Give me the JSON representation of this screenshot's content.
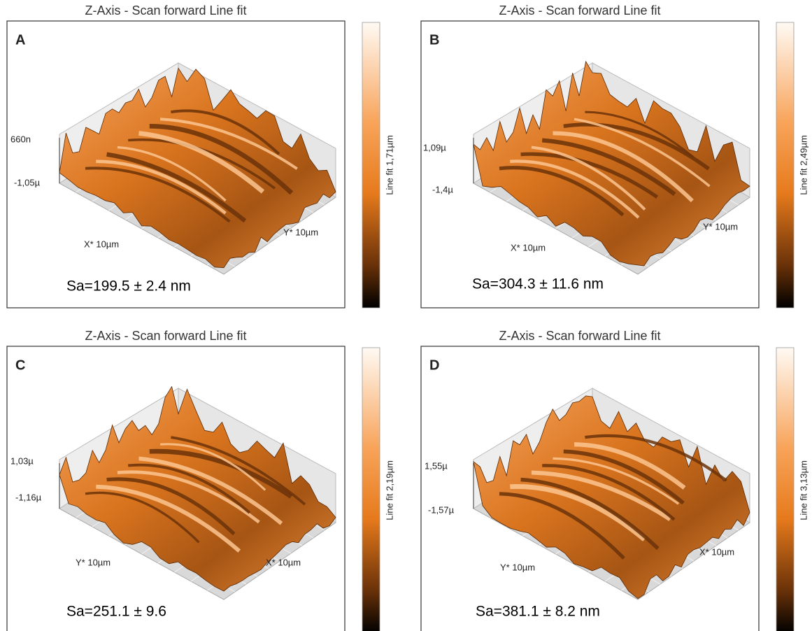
{
  "panels": [
    {
      "label": "A",
      "title": "Z-Axis - Scan forward   Line fit",
      "z_max": "660n",
      "z_min": "-1,05µ",
      "x_axis": "X* 10µm",
      "y_axis": "Y* 10µm",
      "colorbar": "Line fit 1,71µm",
      "roughness": "Sa=199.5 ± 2.4 nm"
    },
    {
      "label": "B",
      "title": "Z-Axis - Scan forward   Line fit",
      "z_max": "1,09µ",
      "z_min": "-1,4µ",
      "x_axis": "X* 10µm",
      "y_axis": "Y* 10µm",
      "colorbar": "Line fit 2,49µm",
      "roughness": "Sa=304.3 ± 11.6 nm"
    },
    {
      "label": "C",
      "title": "Z-Axis - Scan forward   Line fit",
      "z_max": "1,03µ",
      "z_min": "-1,16µ",
      "x_axis": "X* 10µm",
      "y_axis": "Y* 10µm",
      "colorbar": "Line fit 2,19µm",
      "roughness": "Sa=251.1 ± 9.6"
    },
    {
      "label": "D",
      "title": "Z-Axis - Scan forward   Line fit",
      "z_max": "1,55µ",
      "z_min": "-1,57µ",
      "x_axis": "X* 10µm",
      "y_axis": "Y* 10µm",
      "colorbar": "Line fit 3,13µm",
      "roughness": "Sa=381.1 ± 8.2 nm"
    }
  ]
}
